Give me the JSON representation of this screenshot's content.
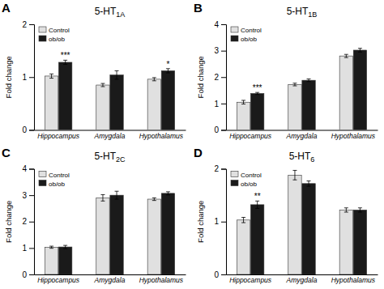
{
  "chart_data": [
    {
      "type": "bar",
      "title": "5-HT1A",
      "ylabel": "Fold change",
      "categories": [
        "Hippocampus",
        "Amygdala",
        "Hypothalamus"
      ],
      "series": [
        {
          "name": "Control",
          "color": "#e0e0e0",
          "values": [
            1.02,
            0.85,
            0.96
          ],
          "errors": [
            0.04,
            0.03,
            0.03
          ]
        },
        {
          "name": "ob/ob",
          "color": "#1a1a1a",
          "values": [
            1.28,
            1.04,
            1.12
          ],
          "errors": [
            0.04,
            0.08,
            0.04
          ],
          "significance": [
            "***",
            null,
            "*"
          ]
        }
      ],
      "ylim": [
        0,
        2
      ],
      "yticks": [
        0,
        1,
        2
      ],
      "legend": "upper left",
      "annotations": [
        {
          "text": "A"
        }
      ]
    },
    {
      "type": "bar",
      "title": "5-HT1B",
      "ylabel": "Fold change",
      "categories": [
        "Hippocampus",
        "Amygdala",
        "Hypothalamus"
      ],
      "series": [
        {
          "name": "Control",
          "color": "#e0e0e0",
          "values": [
            1.05,
            1.72,
            2.8
          ],
          "errors": [
            0.07,
            0.05,
            0.06
          ]
        },
        {
          "name": "ob/ob",
          "color": "#1a1a1a",
          "values": [
            1.38,
            1.88,
            3.02
          ],
          "errors": [
            0.04,
            0.05,
            0.07
          ],
          "significance": [
            "***",
            null,
            null
          ]
        }
      ],
      "ylim": [
        0,
        4
      ],
      "yticks": [
        0,
        1,
        2,
        3,
        4
      ],
      "legend": "upper left",
      "annotations": [
        {
          "text": "B"
        }
      ]
    },
    {
      "type": "bar",
      "title": "5-HT2C",
      "ylabel": "Fold change",
      "categories": [
        "Hippocampus",
        "Amygdala",
        "Hypothalamus"
      ],
      "series": [
        {
          "name": "Control",
          "color": "#e0e0e0",
          "values": [
            1.03,
            2.9,
            2.85
          ],
          "errors": [
            0.04,
            0.12,
            0.05
          ]
        },
        {
          "name": "ob/ob",
          "color": "#1a1a1a",
          "values": [
            1.04,
            3.0,
            3.07
          ],
          "errors": [
            0.06,
            0.15,
            0.06
          ],
          "significance": [
            null,
            null,
            null
          ]
        }
      ],
      "ylim": [
        0,
        4
      ],
      "yticks": [
        0,
        1,
        2,
        3,
        4
      ],
      "legend": "upper left",
      "annotations": [
        {
          "text": "C"
        }
      ]
    },
    {
      "type": "bar",
      "title": "5-HT6",
      "ylabel": "Fold change",
      "categories": [
        "Hippocampus",
        "Amygdala",
        "Hypothalamus"
      ],
      "series": [
        {
          "name": "Control",
          "color": "#e0e0e0",
          "values": [
            1.03,
            1.88,
            1.22
          ],
          "errors": [
            0.05,
            0.09,
            0.04
          ]
        },
        {
          "name": "ob/ob",
          "color": "#1a1a1a",
          "values": [
            1.32,
            1.72,
            1.22
          ],
          "errors": [
            0.07,
            0.05,
            0.04
          ],
          "significance": [
            "**",
            null,
            null
          ]
        }
      ],
      "ylim": [
        0,
        2
      ],
      "yticks": [
        0,
        1,
        2
      ],
      "legend": "upper left",
      "annotations": [
        {
          "text": "D"
        }
      ]
    }
  ]
}
